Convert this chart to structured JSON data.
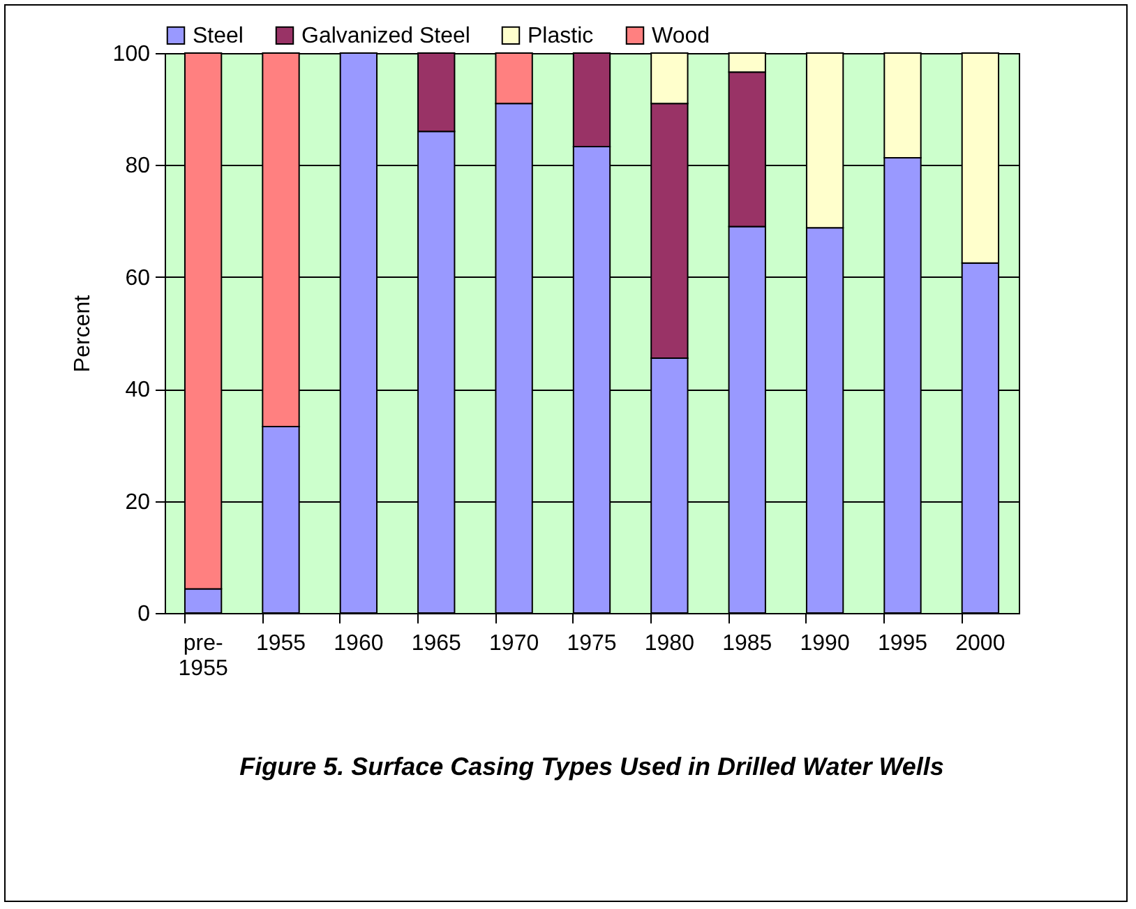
{
  "chart_data": {
    "type": "bar",
    "title": "Figure 5. Surface Casing Types Used in Drilled Water Wells",
    "ylabel": "Percent",
    "stacked": true,
    "legend": "top",
    "grid": "y",
    "categories": [
      "pre-1955",
      "1955",
      "1960",
      "1965",
      "1970",
      "1975",
      "1980",
      "1985",
      "1990",
      "1995",
      "2000"
    ],
    "ylim": [
      0,
      100
    ],
    "yticks": [
      0,
      20,
      40,
      60,
      80,
      100
    ],
    "series": [
      {
        "name": "Steel",
        "color": "#9999ff",
        "values": [
          4.3,
          33.3,
          100,
          86,
          91,
          83.3,
          45.5,
          69,
          68.8,
          81.3,
          62.5
        ]
      },
      {
        "name": "Galvanized Steel",
        "color": "#993366",
        "values": [
          0,
          0,
          0,
          14,
          0,
          16.7,
          45.5,
          27.6,
          0,
          0,
          0
        ]
      },
      {
        "name": "Plastic",
        "color": "#ffffcc",
        "values": [
          0,
          0,
          0,
          0,
          0,
          0,
          9,
          3.4,
          31.2,
          18.7,
          37.5
        ]
      },
      {
        "name": "Wood",
        "color": "#ff8080",
        "values": [
          95.7,
          66.7,
          0,
          0,
          9,
          0,
          0,
          0,
          0,
          0,
          0
        ]
      }
    ]
  }
}
